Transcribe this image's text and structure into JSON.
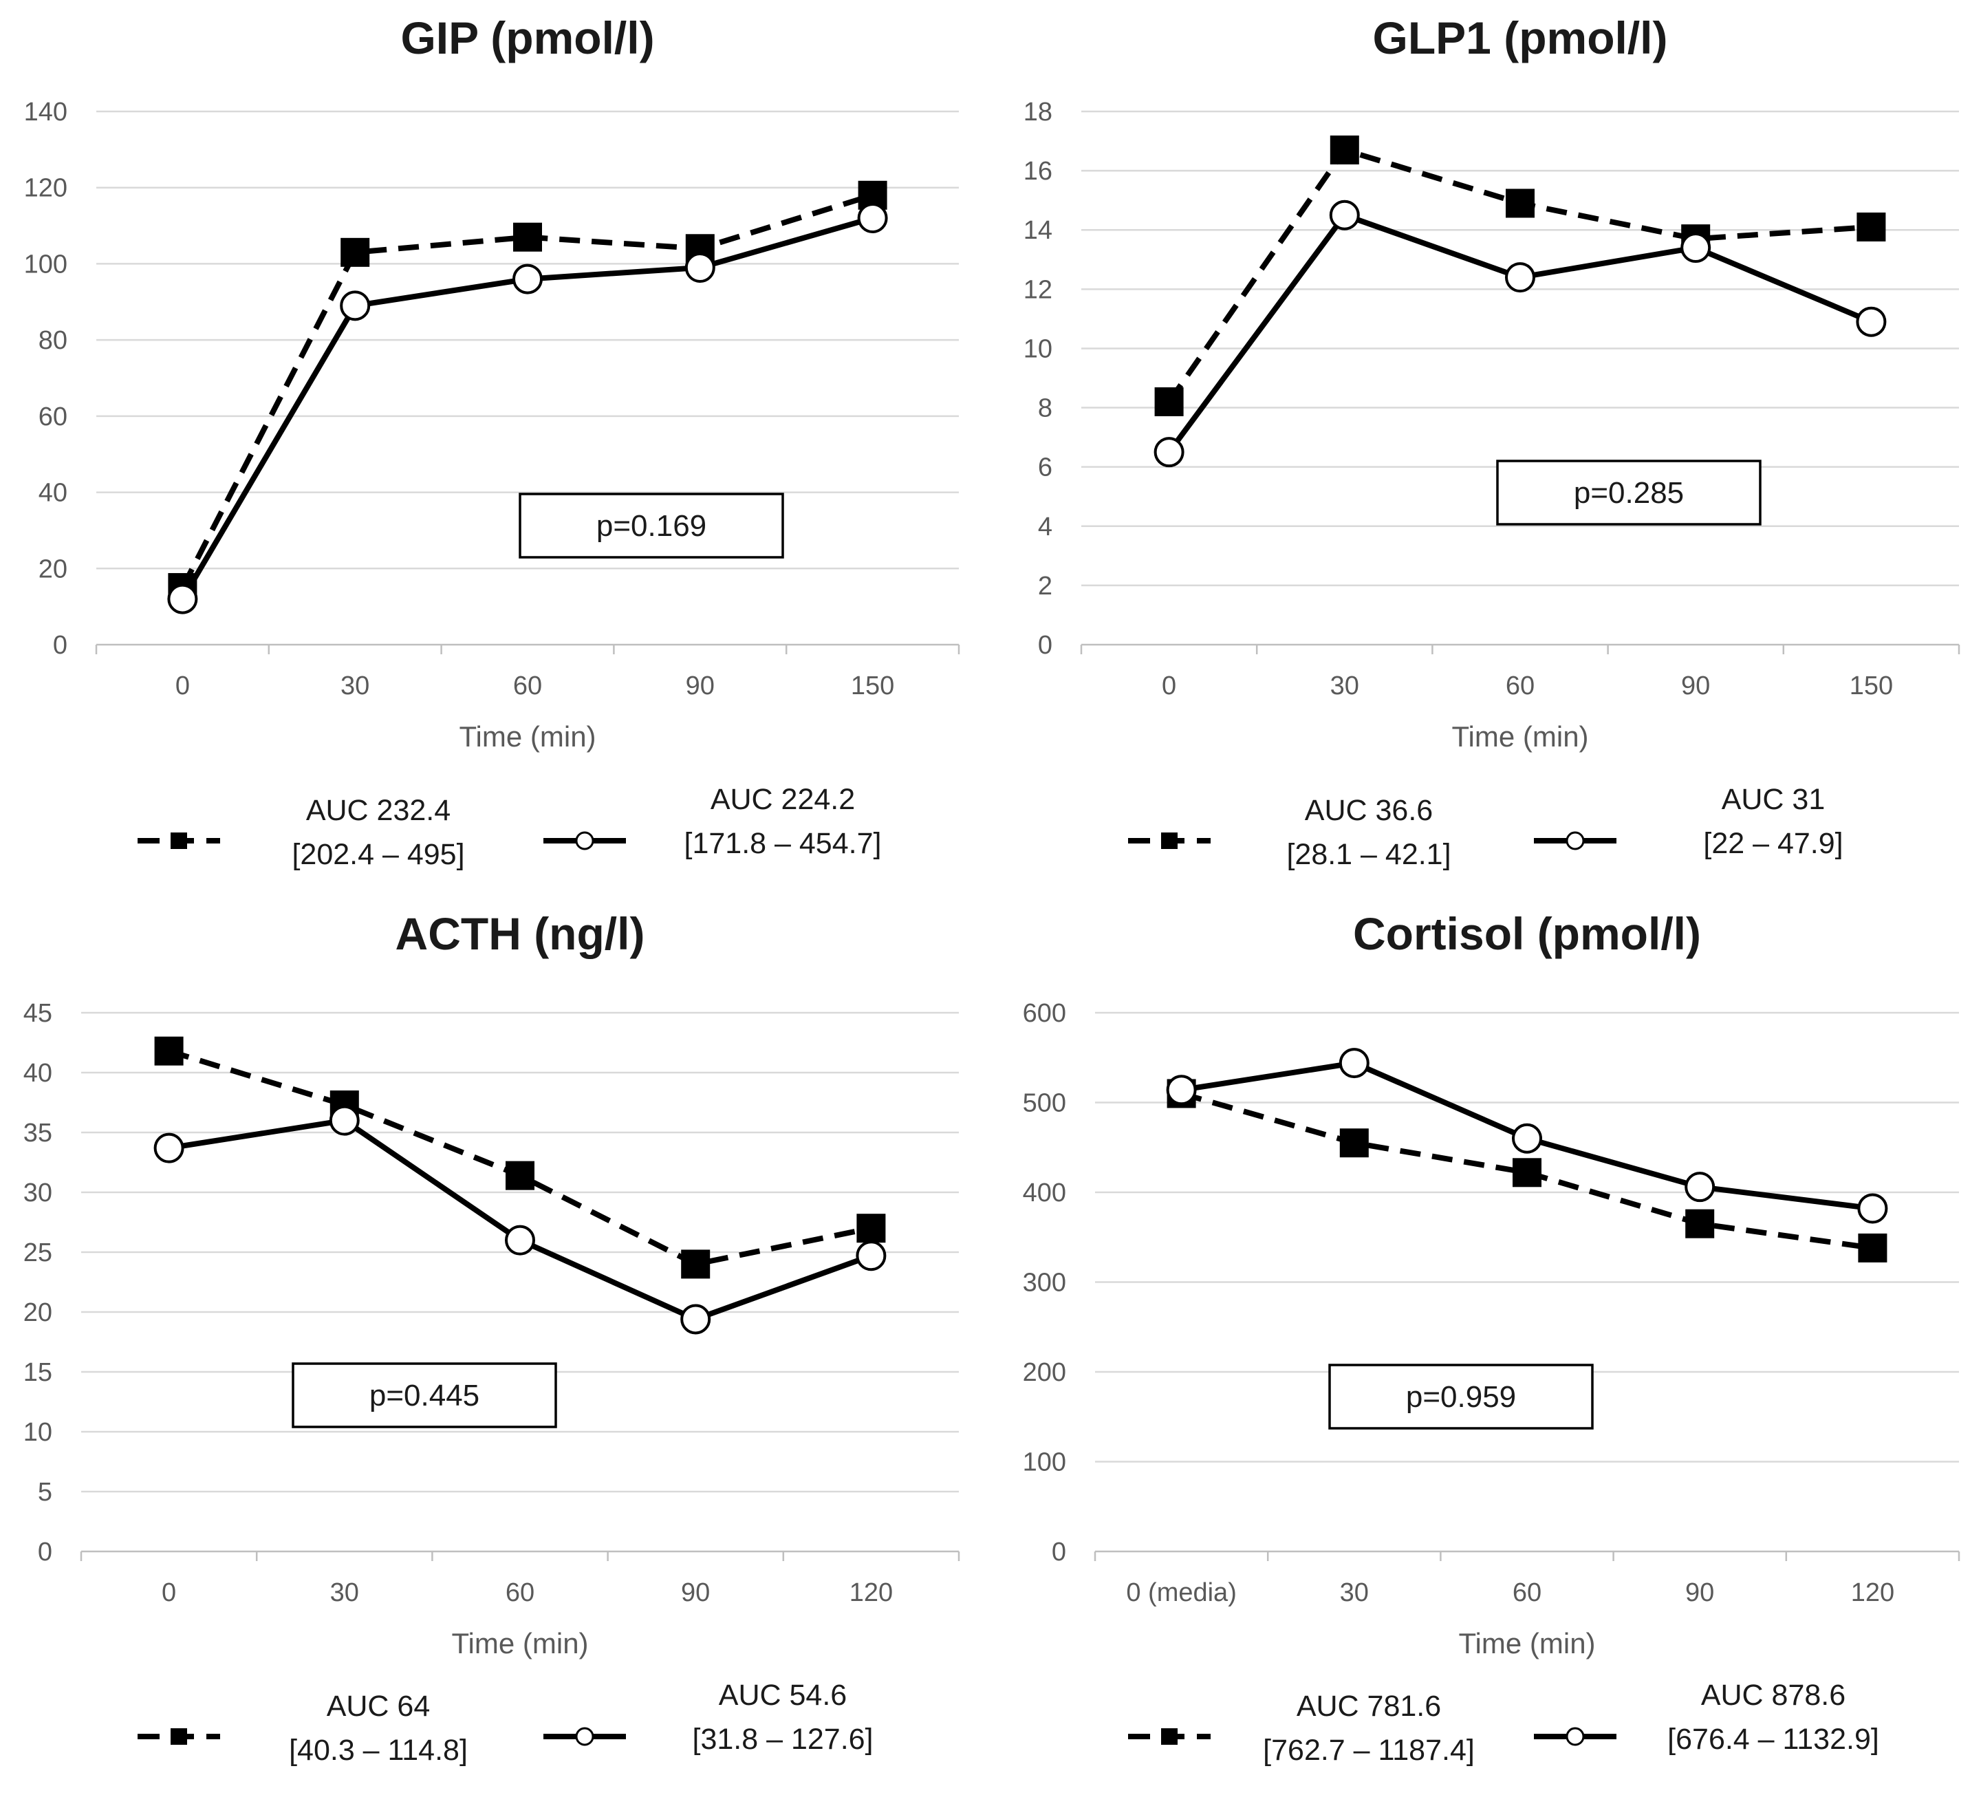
{
  "chart_data": [
    {
      "type": "line",
      "title": "GIP (pmol/l)",
      "xlabel": "Time (min)",
      "ylabel": "",
      "categories": [
        "0",
        "30",
        "60",
        "90",
        "150"
      ],
      "ylim": [
        0,
        140
      ],
      "yticks": [
        "0",
        "20",
        "40",
        "60",
        "80",
        "100",
        "120",
        "140"
      ],
      "series": [
        {
          "name": "dashed-square",
          "values": [
            15,
            103,
            107,
            104,
            118
          ],
          "legend_auc": "AUC 232.4",
          "legend_range": "[202.4 – 495]"
        },
        {
          "name": "solid-circle",
          "values": [
            12,
            89,
            96,
            99,
            112
          ],
          "legend_auc": "AUC 224.2",
          "legend_range": "[171.8 – 454.7]"
        }
      ],
      "annotation": "p=0.169"
    },
    {
      "type": "line",
      "title": "GLP1 (pmol/l)",
      "xlabel": "Time (min)",
      "ylabel": "",
      "categories": [
        "0",
        "30",
        "60",
        "90",
        "150"
      ],
      "ylim": [
        0,
        18
      ],
      "yticks": [
        "0",
        "2",
        "4",
        "6",
        "8",
        "10",
        "12",
        "14",
        "16",
        "18"
      ],
      "series": [
        {
          "name": "dashed-square",
          "values": [
            8.2,
            16.7,
            14.9,
            13.7,
            14.1
          ],
          "legend_auc": "AUC 36.6",
          "legend_range": "[28.1 – 42.1]"
        },
        {
          "name": "solid-circle",
          "values": [
            6.5,
            14.5,
            12.4,
            13.4,
            10.9
          ],
          "legend_auc": "AUC 31",
          "legend_range": "[22 – 47.9]"
        }
      ],
      "annotation": "p=0.285"
    },
    {
      "type": "line",
      "title": "ACTH (ng/l)",
      "xlabel": "Time (min)",
      "ylabel": "",
      "categories": [
        "0",
        "30",
        "60",
        "90",
        "120"
      ],
      "ylim": [
        0,
        45
      ],
      "yticks": [
        "0",
        "5",
        "10",
        "15",
        "20",
        "25",
        "30",
        "35",
        "40",
        "45"
      ],
      "series": [
        {
          "name": "dashed-square",
          "values": [
            41.8,
            37.3,
            31.4,
            24,
            27
          ],
          "legend_auc": "AUC 64",
          "legend_range": "[40.3 – 114.8]"
        },
        {
          "name": "solid-circle",
          "values": [
            33.7,
            36,
            26,
            19.4,
            24.7
          ],
          "legend_auc": "AUC 54.6",
          "legend_range": "[31.8 – 127.6]"
        }
      ],
      "annotation": "p=0.445"
    },
    {
      "type": "line",
      "title": "Cortisol (pmol/l)",
      "xlabel": "Time (min)",
      "ylabel": "",
      "categories": [
        "0 (media)",
        "30",
        "60",
        "90",
        "120"
      ],
      "ylim": [
        0,
        600
      ],
      "yticks": [
        "0",
        "100",
        "200",
        "300",
        "400",
        "500",
        "600"
      ],
      "series": [
        {
          "name": "dashed-square",
          "values": [
            510,
            455,
            422,
            365,
            338
          ],
          "legend_auc": "AUC 781.6",
          "legend_range": "[762.7 – 1187.4]"
        },
        {
          "name": "solid-circle",
          "values": [
            514,
            544,
            460,
            406,
            382
          ],
          "legend_auc": "AUC 878.6",
          "legend_range": "[676.4 – 1132.9]"
        }
      ],
      "annotation": "p=0.959"
    }
  ]
}
